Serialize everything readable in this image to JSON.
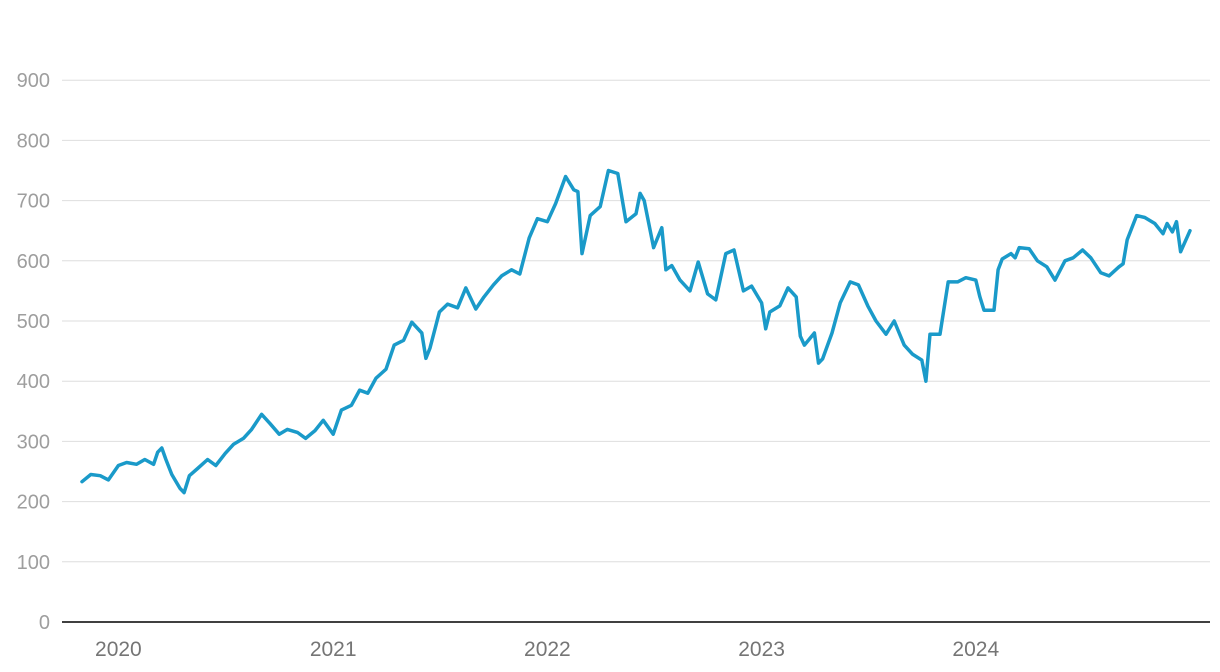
{
  "chart_data": {
    "type": "line",
    "title": "",
    "xlabel": "",
    "ylabel": "",
    "ylim": [
      0,
      1000
    ],
    "yticks": [
      0,
      100,
      200,
      300,
      400,
      500,
      600,
      700,
      800,
      900
    ],
    "ytick_labels": [
      "0",
      "100",
      "200",
      "300",
      "400",
      "500",
      "600",
      "700",
      "800",
      "900"
    ],
    "xlim": [
      "2019-10-01",
      "2024-12-31"
    ],
    "xticks": [
      {
        "label": "2020",
        "date": "2020-01-01"
      },
      {
        "label": "2021",
        "date": "2021-01-01"
      },
      {
        "label": "2022",
        "date": "2022-01-01"
      },
      {
        "label": "2023",
        "date": "2023-01-01"
      },
      {
        "label": "2024",
        "date": "2024-01-01"
      }
    ],
    "grid": true,
    "legend": "none",
    "series": [
      {
        "color": "#1a9ac9",
        "points": [
          [
            "2019-10-31",
            233
          ],
          [
            "2019-11-15",
            245
          ],
          [
            "2019-12-01",
            243
          ],
          [
            "2019-12-15",
            236
          ],
          [
            "2020-01-01",
            260
          ],
          [
            "2020-01-15",
            265
          ],
          [
            "2020-02-01",
            262
          ],
          [
            "2020-02-15",
            270
          ],
          [
            "2020-03-01",
            262
          ],
          [
            "2020-03-08",
            282
          ],
          [
            "2020-03-15",
            289
          ],
          [
            "2020-03-22",
            270
          ],
          [
            "2020-04-01",
            245
          ],
          [
            "2020-04-15",
            222
          ],
          [
            "2020-04-22",
            215
          ],
          [
            "2020-05-01",
            243
          ],
          [
            "2020-05-15",
            255
          ],
          [
            "2020-06-01",
            270
          ],
          [
            "2020-06-15",
            260
          ],
          [
            "2020-07-01",
            280
          ],
          [
            "2020-07-15",
            295
          ],
          [
            "2020-08-01",
            305
          ],
          [
            "2020-08-15",
            320
          ],
          [
            "2020-09-01",
            345
          ],
          [
            "2020-09-15",
            330
          ],
          [
            "2020-10-01",
            312
          ],
          [
            "2020-10-15",
            320
          ],
          [
            "2020-11-01",
            315
          ],
          [
            "2020-11-15",
            305
          ],
          [
            "2020-12-01",
            318
          ],
          [
            "2020-12-15",
            335
          ],
          [
            "2021-01-01",
            312
          ],
          [
            "2021-01-15",
            352
          ],
          [
            "2021-02-01",
            360
          ],
          [
            "2021-02-15",
            385
          ],
          [
            "2021-03-01",
            380
          ],
          [
            "2021-03-15",
            405
          ],
          [
            "2021-04-01",
            420
          ],
          [
            "2021-04-15",
            460
          ],
          [
            "2021-05-01",
            468
          ],
          [
            "2021-05-15",
            498
          ],
          [
            "2021-06-01",
            480
          ],
          [
            "2021-06-08",
            438
          ],
          [
            "2021-06-15",
            455
          ],
          [
            "2021-07-01",
            515
          ],
          [
            "2021-07-15",
            528
          ],
          [
            "2021-08-01",
            522
          ],
          [
            "2021-08-15",
            555
          ],
          [
            "2021-09-01",
            520
          ],
          [
            "2021-09-15",
            540
          ],
          [
            "2021-10-01",
            560
          ],
          [
            "2021-10-15",
            575
          ],
          [
            "2021-11-01",
            585
          ],
          [
            "2021-11-15",
            578
          ],
          [
            "2021-12-01",
            638
          ],
          [
            "2021-12-15",
            670
          ],
          [
            "2022-01-01",
            665
          ],
          [
            "2022-01-15",
            695
          ],
          [
            "2022-02-01",
            740
          ],
          [
            "2022-02-15",
            718
          ],
          [
            "2022-02-22",
            715
          ],
          [
            "2022-03-01",
            612
          ],
          [
            "2022-03-15",
            675
          ],
          [
            "2022-04-01",
            690
          ],
          [
            "2022-04-15",
            750
          ],
          [
            "2022-05-01",
            745
          ],
          [
            "2022-05-15",
            665
          ],
          [
            "2022-06-01",
            678
          ],
          [
            "2022-06-08",
            712
          ],
          [
            "2022-06-15",
            700
          ],
          [
            "2022-07-01",
            622
          ],
          [
            "2022-07-15",
            655
          ],
          [
            "2022-07-22",
            585
          ],
          [
            "2022-08-01",
            592
          ],
          [
            "2022-08-15",
            568
          ],
          [
            "2022-09-01",
            550
          ],
          [
            "2022-09-15",
            598
          ],
          [
            "2022-10-01",
            545
          ],
          [
            "2022-10-15",
            535
          ],
          [
            "2022-11-01",
            612
          ],
          [
            "2022-11-15",
            618
          ],
          [
            "2022-12-01",
            550
          ],
          [
            "2022-12-15",
            558
          ],
          [
            "2023-01-01",
            530
          ],
          [
            "2023-01-08",
            487
          ],
          [
            "2023-01-15",
            515
          ],
          [
            "2023-02-01",
            525
          ],
          [
            "2023-02-15",
            555
          ],
          [
            "2023-03-01",
            540
          ],
          [
            "2023-03-08",
            475
          ],
          [
            "2023-03-15",
            460
          ],
          [
            "2023-04-01",
            480
          ],
          [
            "2023-04-08",
            430
          ],
          [
            "2023-04-15",
            437
          ],
          [
            "2023-05-01",
            480
          ],
          [
            "2023-05-15",
            530
          ],
          [
            "2023-06-01",
            565
          ],
          [
            "2023-06-15",
            560
          ],
          [
            "2023-07-01",
            525
          ],
          [
            "2023-07-15",
            500
          ],
          [
            "2023-08-01",
            478
          ],
          [
            "2023-08-15",
            500
          ],
          [
            "2023-09-01",
            460
          ],
          [
            "2023-09-15",
            445
          ],
          [
            "2023-10-01",
            435
          ],
          [
            "2023-10-08",
            400
          ],
          [
            "2023-10-15",
            478
          ],
          [
            "2023-11-01",
            478
          ],
          [
            "2023-11-15",
            565
          ],
          [
            "2023-12-01",
            565
          ],
          [
            "2023-12-15",
            572
          ],
          [
            "2024-01-01",
            568
          ],
          [
            "2024-01-08",
            540
          ],
          [
            "2024-01-15",
            518
          ],
          [
            "2024-02-01",
            518
          ],
          [
            "2024-02-08",
            585
          ],
          [
            "2024-02-15",
            603
          ],
          [
            "2024-03-01",
            612
          ],
          [
            "2024-03-08",
            605
          ],
          [
            "2024-03-15",
            622
          ],
          [
            "2024-04-01",
            620
          ],
          [
            "2024-04-15",
            600
          ],
          [
            "2024-05-01",
            590
          ],
          [
            "2024-05-15",
            568
          ],
          [
            "2024-06-01",
            600
          ],
          [
            "2024-06-15",
            605
          ],
          [
            "2024-07-01",
            618
          ],
          [
            "2024-07-15",
            605
          ],
          [
            "2024-08-01",
            580
          ],
          [
            "2024-08-15",
            575
          ],
          [
            "2024-09-01",
            590
          ],
          [
            "2024-09-08",
            595
          ],
          [
            "2024-09-15",
            635
          ],
          [
            "2024-10-01",
            675
          ],
          [
            "2024-10-15",
            672
          ],
          [
            "2024-11-01",
            662
          ],
          [
            "2024-11-15",
            645
          ],
          [
            "2024-11-22",
            662
          ],
          [
            "2024-12-01",
            648
          ],
          [
            "2024-12-08",
            665
          ],
          [
            "2024-12-15",
            615
          ],
          [
            "2024-12-31",
            650
          ]
        ]
      }
    ]
  }
}
